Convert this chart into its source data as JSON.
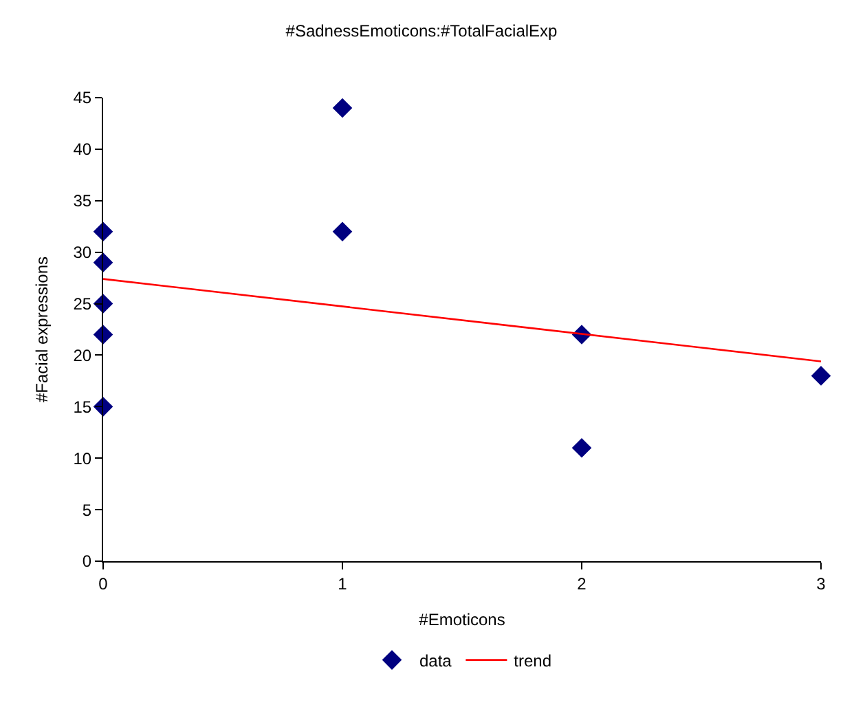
{
  "chart_data": {
    "type": "scatter",
    "title": "#SadnessEmoticons:#TotalFacialExp",
    "xlabel": "#Emoticons",
    "ylabel": "#Facial expressions",
    "series": [
      {
        "name": "data",
        "color": "#000080",
        "marker": "diamond",
        "x": [
          0,
          0,
          0,
          0,
          0,
          1,
          1,
          2,
          2,
          3
        ],
        "values": [
          32,
          29,
          25,
          22,
          15,
          44,
          32,
          22,
          11,
          18
        ]
      },
      {
        "name": "trend",
        "type": "line",
        "color": "#ff0000",
        "marker": "none",
        "line_style": "solid",
        "x": [
          0,
          3
        ],
        "values": [
          27.4,
          19.4
        ]
      }
    ],
    "xlim": [
      0,
      3
    ],
    "xticks": [
      0,
      1,
      2,
      3
    ],
    "ylim": [
      0,
      45
    ],
    "yticks": [
      0,
      5,
      10,
      15,
      20,
      25,
      30,
      35,
      40,
      45
    ],
    "grid": false,
    "legend": "bottom"
  }
}
